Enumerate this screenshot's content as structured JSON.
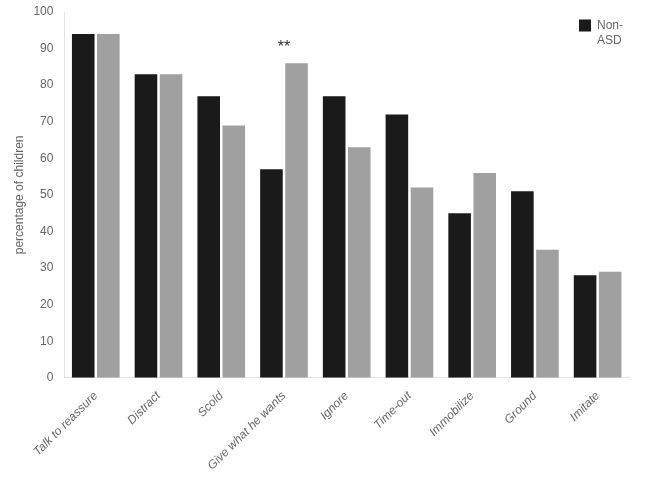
{
  "chart_data": {
    "type": "bar",
    "categories": [
      "Talk to reassure",
      "Distract",
      "Scold",
      "Give what he wants",
      "Ignore",
      "Time-out",
      "Immobilize",
      "Ground",
      "Imitate"
    ],
    "series": [
      {
        "name": "Non-\nASD",
        "color": "#1a1a1a",
        "values": [
          94,
          83,
          77,
          57,
          77,
          72,
          45,
          51,
          28
        ]
      },
      {
        "color": "#a0a0a0",
        "values": [
          94,
          83,
          69,
          86,
          63,
          52,
          56,
          35,
          29
        ]
      }
    ],
    "ylabel": "percentage of children",
    "ylim": [
      0,
      100
    ],
    "yticks": [
      0,
      10,
      20,
      30,
      40,
      50,
      60,
      70,
      80,
      90,
      100
    ],
    "grid": false,
    "legend": "upper right",
    "annotations": [
      {
        "text": "**",
        "x": "Give what he wants",
        "y": 88
      }
    ]
  }
}
